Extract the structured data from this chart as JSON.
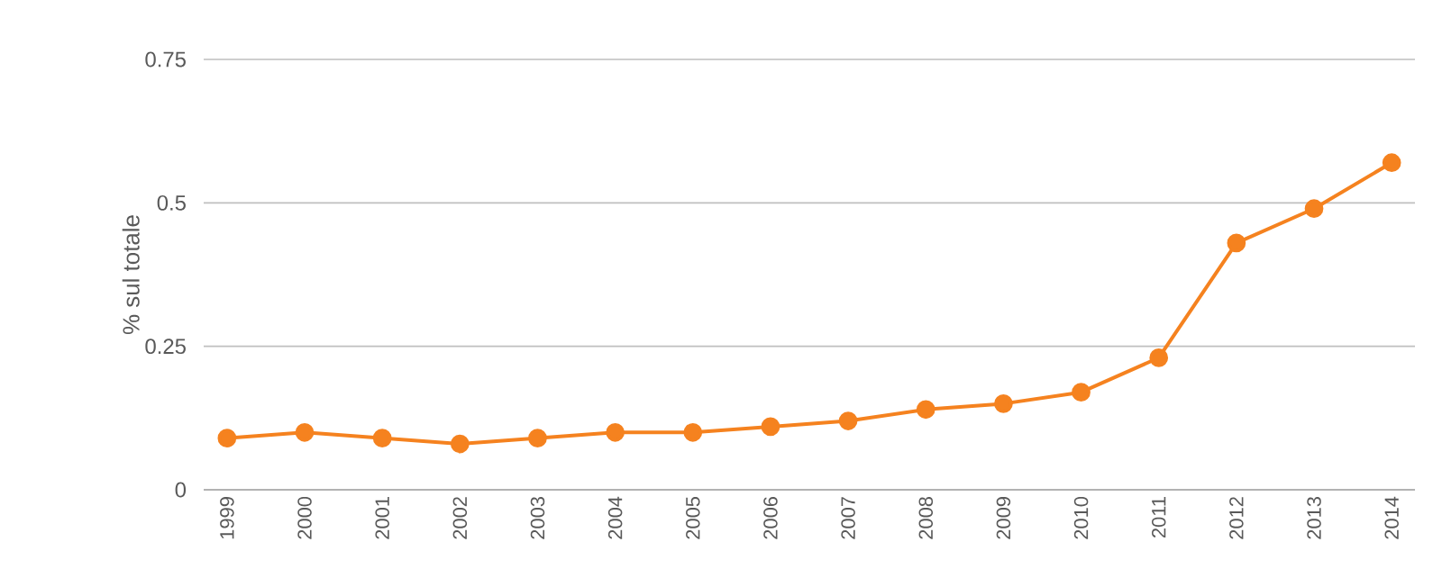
{
  "chart_data": {
    "type": "line",
    "ylabel": "% sul totale",
    "categories": [
      "1999",
      "2000",
      "2001",
      "2002",
      "2003",
      "2004",
      "2005",
      "2006",
      "2007",
      "2008",
      "2009",
      "2010",
      "2011",
      "2012",
      "2013",
      "2014"
    ],
    "series": [
      {
        "color": "#f5821f",
        "values": [
          0.09,
          0.1,
          0.09,
          0.08,
          0.09,
          0.1,
          0.1,
          0.11,
          0.12,
          0.14,
          0.15,
          0.17,
          0.23,
          0.43,
          0.49,
          0.57
        ]
      }
    ],
    "ylim": [
      0,
      0.75
    ],
    "yticks": [
      0,
      {
        "value": 0.25,
        "label": "0.25"
      },
      {
        "value": 0.5,
        "label": "0.5"
      },
      {
        "value": 0.75,
        "label": "0.75"
      }
    ],
    "grid": "y",
    "marker": "circle",
    "line_style": "solid"
  }
}
